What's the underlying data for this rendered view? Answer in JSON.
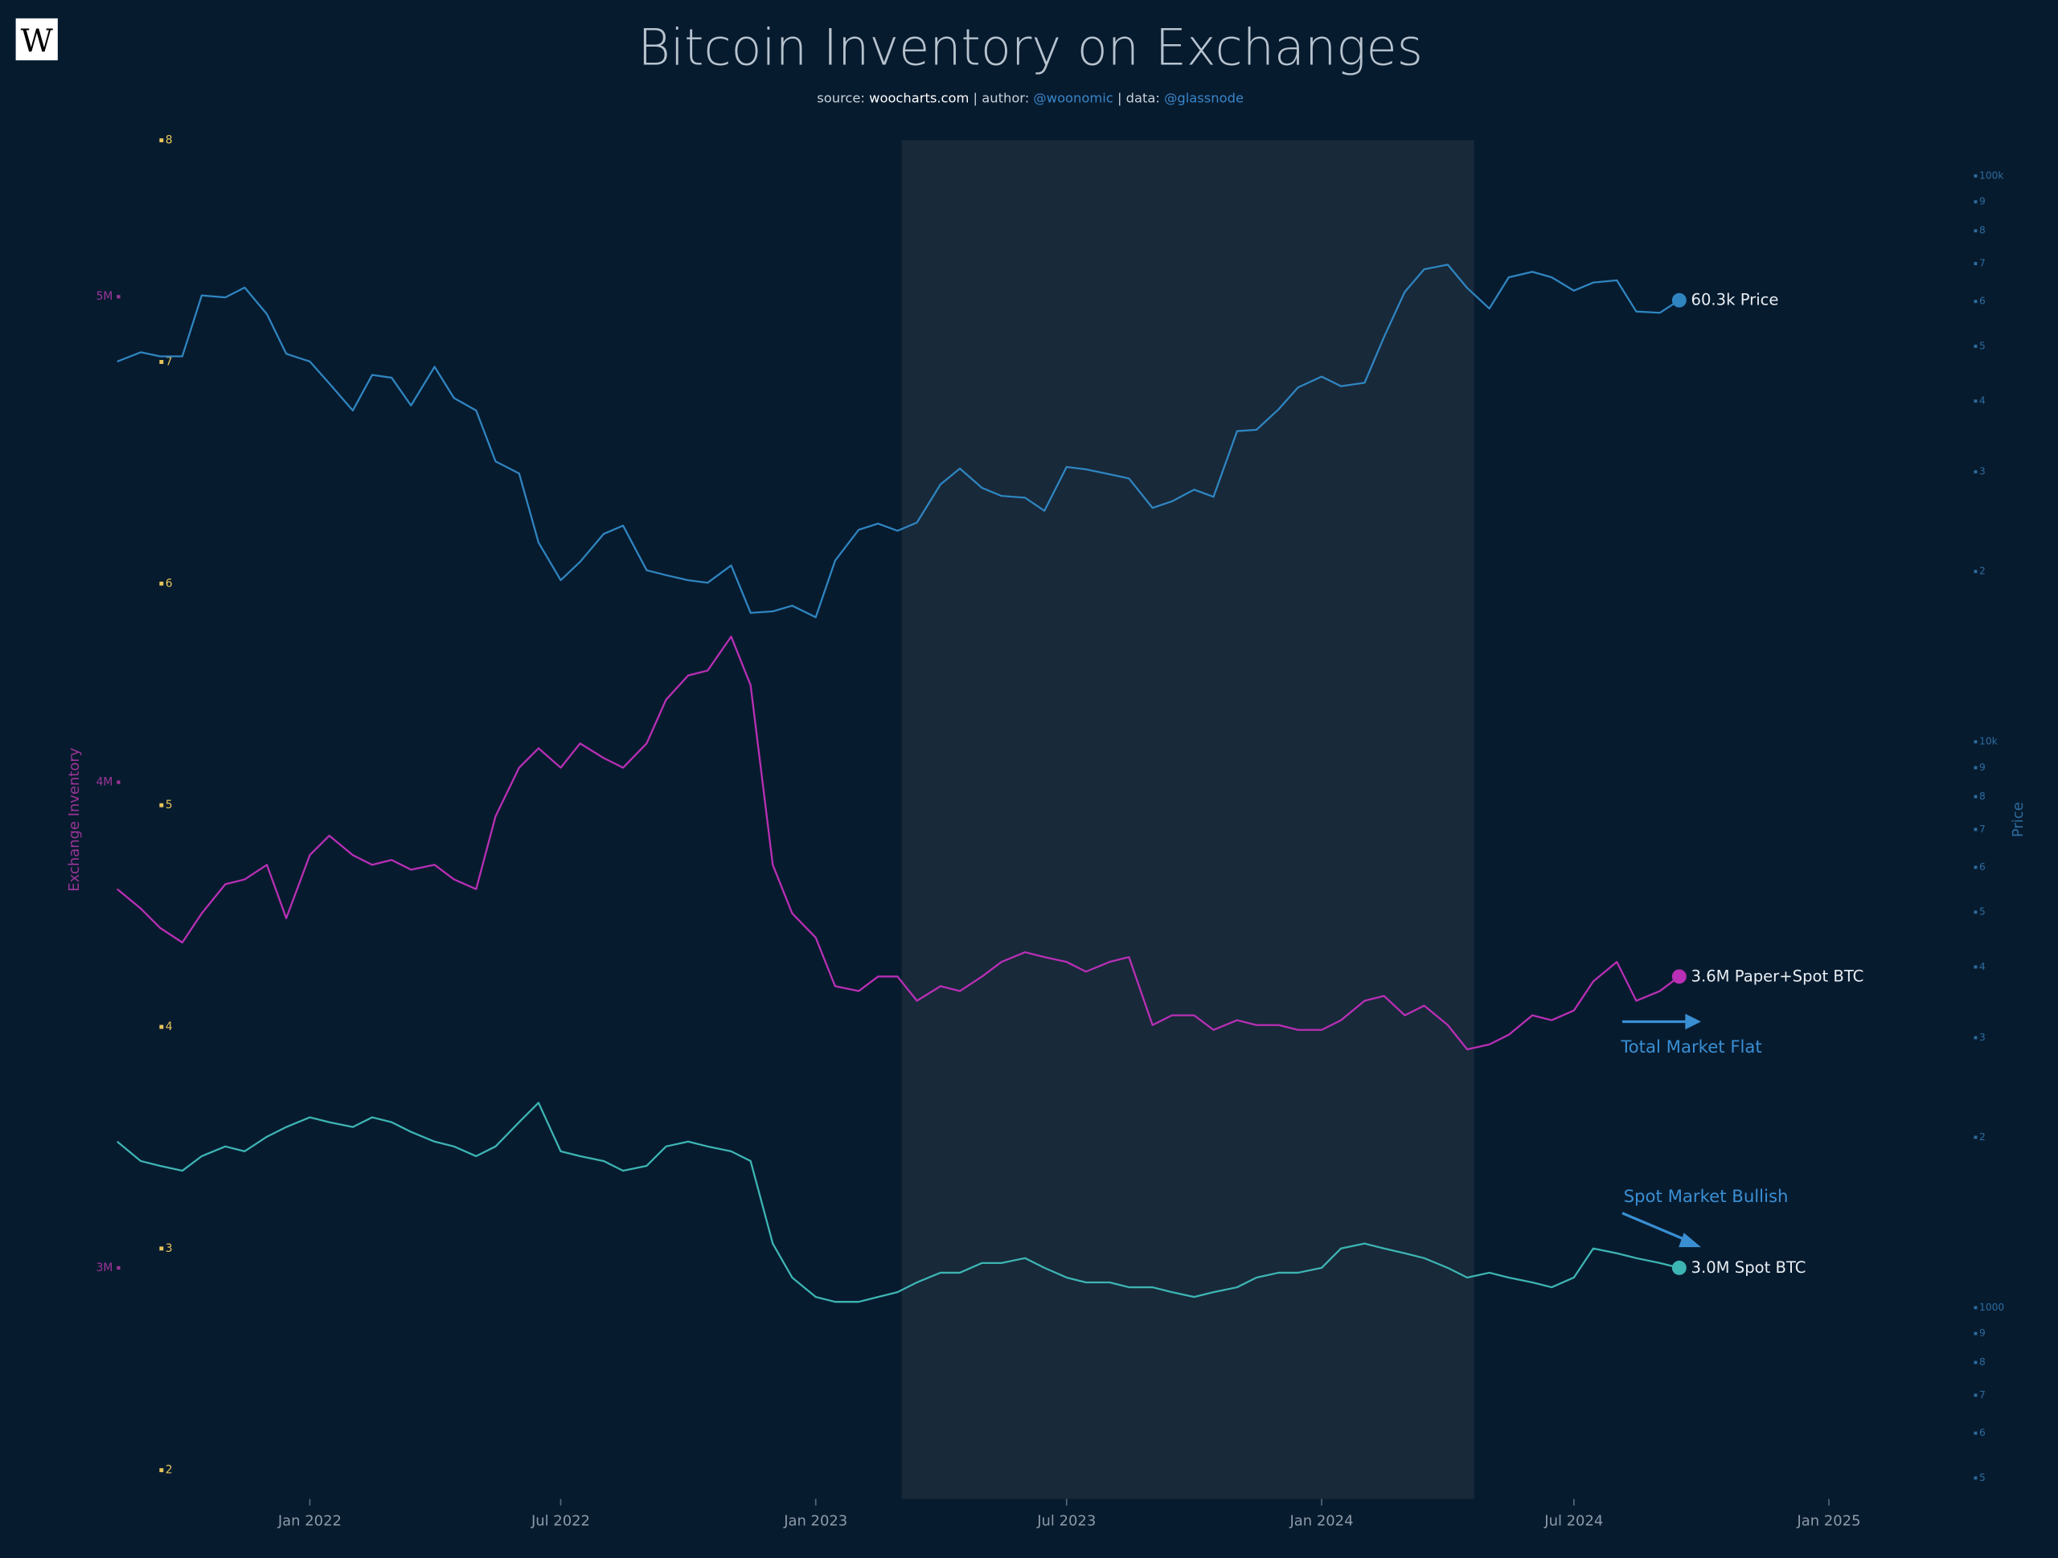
{
  "logo": "W",
  "chart_data": {
    "type": "line",
    "title": "Bitcoin Inventory on Exchanges",
    "subtitle": [
      "source:",
      "woocharts.com",
      "| author:",
      "@woonomic",
      "| data:",
      "@glassnode"
    ],
    "ylabel": "Exchange Inventory",
    "y2label": "Price",
    "annotations": [
      "Total Market Flat",
      "Spot Market Bullish"
    ],
    "shaded_range": [
      "2023-03-04",
      "2024-04-20"
    ],
    "shade_color": "#18293a",
    "xlim": [
      "2021-08-10",
      "2025-04-10"
    ],
    "xticks": [
      {
        "value": "2022-01-01",
        "label": "Jan 2022"
      },
      {
        "value": "2022-07-01",
        "label": "Jul 2022"
      },
      {
        "value": "2023-01-01",
        "label": "Jan 2023"
      },
      {
        "value": "2023-07-01",
        "label": "Jul 2023"
      },
      {
        "value": "2024-01-01",
        "label": "Jan 2024"
      },
      {
        "value": "2024-07-01",
        "label": "Jul 2024"
      },
      {
        "value": "2025-01-01",
        "label": "Jan 2025"
      }
    ],
    "ylim": [
      2.524,
      5.322
    ],
    "yticks": [
      {
        "value": 3,
        "label": "3M"
      },
      {
        "value": 4,
        "label": "4M"
      },
      {
        "value": 5,
        "label": "5M"
      }
    ],
    "y3lim": [
      1.87,
      8
    ],
    "y3ticks": [
      2,
      3,
      4,
      5,
      6,
      7,
      8
    ],
    "y2lim": [
      459,
      115600
    ],
    "y2scale": "log",
    "y2ticks": [
      {
        "value": 500,
        "label": "5"
      },
      {
        "value": 600,
        "label": "6"
      },
      {
        "value": 700,
        "label": "7"
      },
      {
        "value": 800,
        "label": "8"
      },
      {
        "value": 900,
        "label": "9"
      },
      1000,
      {
        "value": 2000,
        "label": "2"
      },
      {
        "value": 3000,
        "label": "3"
      },
      {
        "value": 4000,
        "label": "4"
      },
      {
        "value": 5000,
        "label": "5"
      },
      {
        "value": 6000,
        "label": "6"
      },
      {
        "value": 7000,
        "label": "7"
      },
      {
        "value": 8000,
        "label": "8"
      },
      {
        "value": 9000,
        "label": "9"
      },
      {
        "value": 10000,
        "label": "10k"
      },
      {
        "value": 20000,
        "label": "2"
      },
      {
        "value": 30000,
        "label": "3"
      },
      {
        "value": 40000,
        "label": "4"
      },
      {
        "value": 50000,
        "label": "5"
      },
      {
        "value": 60000,
        "label": "6"
      },
      {
        "value": 70000,
        "label": "7"
      },
      {
        "value": 80000,
        "label": "8"
      },
      {
        "value": 90000,
        "label": "9"
      },
      {
        "value": 100000,
        "label": "100k"
      }
    ],
    "x": [
      "2021-08-15",
      "2021-09-01",
      "2021-09-15",
      "2021-10-01",
      "2021-10-15",
      "2021-11-01",
      "2021-11-15",
      "2021-12-01",
      "2021-12-15",
      "2022-01-01",
      "2022-01-15",
      "2022-02-01",
      "2022-02-15",
      "2022-03-01",
      "2022-03-15",
      "2022-04-01",
      "2022-04-15",
      "2022-05-01",
      "2022-05-15",
      "2022-06-01",
      "2022-06-15",
      "2022-07-01",
      "2022-07-15",
      "2022-08-01",
      "2022-08-15",
      "2022-09-01",
      "2022-09-15",
      "2022-10-01",
      "2022-10-15",
      "2022-11-01",
      "2022-11-15",
      "2022-12-01",
      "2022-12-15",
      "2023-01-01",
      "2023-01-15",
      "2023-02-01",
      "2023-02-15",
      "2023-03-01",
      "2023-03-15",
      "2023-04-01",
      "2023-04-15",
      "2023-05-01",
      "2023-05-15",
      "2023-06-01",
      "2023-06-15",
      "2023-07-01",
      "2023-07-15",
      "2023-08-01",
      "2023-08-15",
      "2023-09-01",
      "2023-09-15",
      "2023-10-01",
      "2023-10-15",
      "2023-11-01",
      "2023-11-15",
      "2023-12-01",
      "2023-12-15",
      "2024-01-01",
      "2024-01-15",
      "2024-02-01",
      "2024-02-15",
      "2024-03-01",
      "2024-03-15",
      "2024-04-01",
      "2024-04-15",
      "2024-05-01",
      "2024-05-15",
      "2024-06-01",
      "2024-06-15",
      "2024-07-01",
      "2024-07-15",
      "2024-08-01",
      "2024-08-15",
      "2024-09-01",
      "2024-09-15"
    ],
    "series": [
      {
        "name": "Price",
        "color": "#2f85c0",
        "axis": "y2",
        "values": [
          47000,
          48800,
          48000,
          48000,
          61500,
          61000,
          63500,
          57000,
          48500,
          47000,
          43000,
          38500,
          44500,
          44000,
          39300,
          46000,
          40500,
          38500,
          31300,
          29800,
          22500,
          19300,
          20800,
          23300,
          24100,
          20100,
          19700,
          19300,
          19100,
          20500,
          16900,
          17000,
          17400,
          16600,
          20900,
          23700,
          24300,
          23600,
          24400,
          28500,
          30400,
          28100,
          27200,
          27000,
          25600,
          30600,
          30300,
          29700,
          29200,
          25900,
          26600,
          27900,
          27100,
          35400,
          35600,
          38700,
          42300,
          44200,
          42500,
          43100,
          51900,
          62400,
          68400,
          69700,
          63400,
          58300,
          66200,
          67700,
          66200,
          62700,
          64800,
          65400,
          57600,
          57300,
          60300
        ],
        "value_labels": [
          null,
          null,
          null,
          null,
          null,
          null,
          null,
          null,
          null,
          null,
          null,
          null,
          null,
          null,
          null,
          null,
          null,
          null,
          null,
          null,
          null,
          null,
          null,
          null,
          null,
          null,
          null,
          null,
          null,
          null,
          null,
          null,
          null,
          null,
          null,
          null,
          null,
          null,
          null,
          null,
          null,
          null,
          null,
          null,
          null,
          null,
          null,
          null,
          null,
          null,
          null,
          null,
          null,
          null,
          null,
          null,
          null,
          null,
          null,
          null,
          null,
          null,
          null,
          null,
          null,
          null,
          null,
          null,
          null,
          null,
          null,
          null,
          null,
          null,
          "60.3k"
        ]
      },
      {
        "name": "Paper+Spot BTC",
        "color": "#b92fb5",
        "values": [
          3.78,
          3.74,
          3.7,
          3.67,
          3.73,
          3.79,
          3.8,
          3.83,
          3.72,
          3.85,
          3.89,
          3.85,
          3.83,
          3.84,
          3.82,
          3.83,
          3.8,
          3.78,
          3.93,
          4.03,
          4.07,
          4.03,
          4.08,
          4.05,
          4.03,
          4.08,
          4.17,
          4.22,
          4.23,
          4.3,
          4.2,
          3.83,
          3.73,
          3.68,
          3.58,
          3.57,
          3.6,
          3.6,
          3.55,
          3.58,
          3.57,
          3.6,
          3.63,
          3.65,
          3.64,
          3.63,
          3.61,
          3.63,
          3.64,
          3.5,
          3.52,
          3.52,
          3.49,
          3.51,
          3.5,
          3.5,
          3.49,
          3.49,
          3.51,
          3.55,
          3.56,
          3.52,
          3.54,
          3.5,
          3.45,
          3.46,
          3.48,
          3.52,
          3.51,
          3.53,
          3.59,
          3.63,
          3.55,
          3.57,
          3.6
        ],
        "value_labels": [
          null,
          null,
          null,
          null,
          null,
          null,
          null,
          null,
          null,
          null,
          null,
          null,
          null,
          null,
          null,
          null,
          null,
          null,
          null,
          null,
          null,
          null,
          null,
          null,
          null,
          null,
          null,
          null,
          null,
          null,
          null,
          null,
          null,
          null,
          null,
          null,
          null,
          null,
          null,
          null,
          null,
          null,
          null,
          null,
          null,
          null,
          null,
          null,
          null,
          null,
          null,
          null,
          null,
          null,
          null,
          null,
          null,
          null,
          null,
          null,
          null,
          null,
          null,
          null,
          null,
          null,
          null,
          null,
          null,
          null,
          null,
          null,
          null,
          null,
          "3.6M"
        ]
      },
      {
        "name": "Spot BTC",
        "color": "#3db5b3",
        "values": [
          3.26,
          3.22,
          3.21,
          3.2,
          3.23,
          3.25,
          3.24,
          3.27,
          3.29,
          3.31,
          3.3,
          3.29,
          3.31,
          3.3,
          3.28,
          3.26,
          3.25,
          3.23,
          3.25,
          3.3,
          3.34,
          3.24,
          3.23,
          3.22,
          3.2,
          3.21,
          3.25,
          3.26,
          3.25,
          3.24,
          3.22,
          3.05,
          2.98,
          2.94,
          2.93,
          2.93,
          2.94,
          2.95,
          2.97,
          2.99,
          2.99,
          3.01,
          3.01,
          3.02,
          3.0,
          2.98,
          2.97,
          2.97,
          2.96,
          2.96,
          2.95,
          2.94,
          2.95,
          2.96,
          2.98,
          2.99,
          2.99,
          3.0,
          3.04,
          3.05,
          3.04,
          3.03,
          3.02,
          3.0,
          2.98,
          2.99,
          2.98,
          2.97,
          2.96,
          2.98,
          3.04,
          3.03,
          3.02,
          3.01,
          3.0
        ],
        "value_labels": [
          null,
          null,
          null,
          null,
          null,
          null,
          null,
          null,
          null,
          null,
          null,
          null,
          null,
          null,
          null,
          null,
          null,
          null,
          null,
          null,
          null,
          null,
          null,
          null,
          null,
          null,
          null,
          null,
          null,
          null,
          null,
          null,
          null,
          null,
          null,
          null,
          null,
          null,
          null,
          null,
          null,
          null,
          null,
          null,
          null,
          null,
          null,
          null,
          null,
          null,
          null,
          null,
          null,
          null,
          null,
          null,
          null,
          null,
          null,
          null,
          null,
          null,
          null,
          null,
          null,
          null,
          null,
          null,
          null,
          null,
          null,
          null,
          null,
          null,
          "3.0M"
        ]
      }
    ]
  }
}
